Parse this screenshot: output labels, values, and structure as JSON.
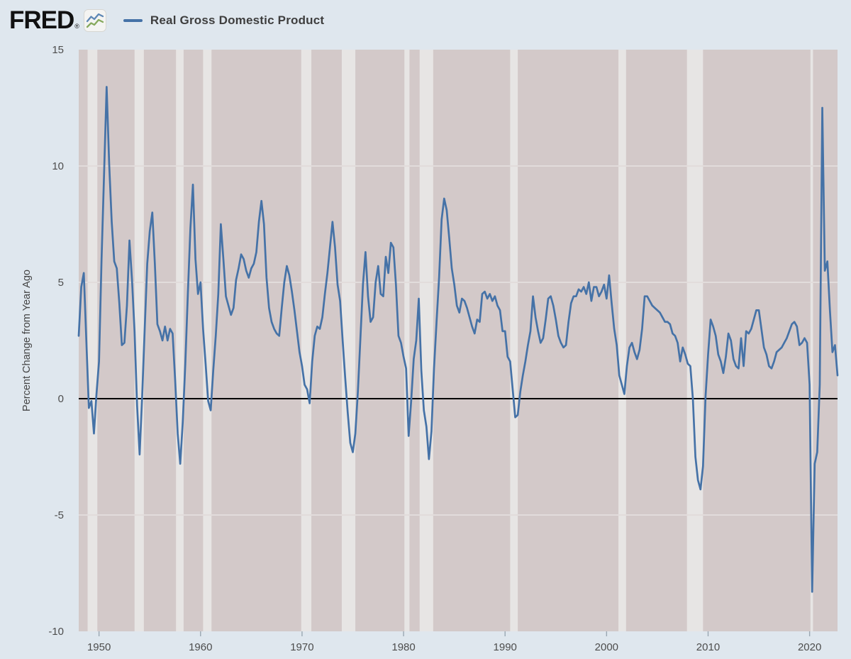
{
  "header": {
    "logo_text": "FRED",
    "logo_registered": "®",
    "series_label": "Real Gross Domestic Product"
  },
  "colors": {
    "page_bg": "#dfe7ee",
    "plot_bg": "#d3c9c9",
    "recession_band": "#e7e5e4",
    "gridline": "#e2dcdb",
    "line": "#4572a7",
    "zero_line": "#000000",
    "tick_text": "#4d4d4d",
    "axis_title": "#444444",
    "tick_mark": "#9aa7b2",
    "logo": "#111111",
    "legend_text": "#3e3e3e",
    "icon_blue": "#5e87b5",
    "icon_green": "#86a95d"
  },
  "chart_data": {
    "type": "line",
    "title": "Real Gross Domestic Product",
    "xlabel": "",
    "ylabel": "Percent Change from Year Ago",
    "legend_position": "top-left",
    "grid": "light horizontal gridlines every 5 units; shaded vertical recession bands",
    "frequency": "quarterly",
    "x_start_year": 1948,
    "x_domain": [
      1948.0,
      2022.75
    ],
    "y_domain": [
      -10,
      15
    ],
    "y_ticks": [
      15,
      10,
      5,
      0,
      -5,
      -10
    ],
    "x_ticks": [
      1950,
      1960,
      1970,
      1980,
      1990,
      2000,
      2010,
      2020
    ],
    "gridline_values": [
      10,
      5,
      -5
    ],
    "zero_line_value": 0,
    "recessions": [
      [
        1948.875,
        1949.833
      ],
      [
        1953.5,
        1954.417
      ],
      [
        1957.583,
        1958.333
      ],
      [
        1960.25,
        1961.083
      ],
      [
        1969.917,
        1970.917
      ],
      [
        1973.917,
        1975.25
      ],
      [
        1980.083,
        1980.583
      ],
      [
        1981.583,
        1982.917
      ],
      [
        1990.5,
        1991.25
      ],
      [
        2001.167,
        2001.917
      ],
      [
        2007.917,
        2009.5
      ],
      [
        2020.083,
        2020.333
      ]
    ],
    "values": [
      2.7,
      4.8,
      5.4,
      2.5,
      -0.4,
      -0.1,
      -1.5,
      0.2,
      1.6,
      6.0,
      9.7,
      13.4,
      10.1,
      7.6,
      5.9,
      5.6,
      4.1,
      2.3,
      2.4,
      4.0,
      6.8,
      5.1,
      2.9,
      -0.3,
      -2.4,
      0.1,
      3.0,
      5.8,
      7.2,
      8.0,
      5.8,
      3.2,
      2.9,
      2.5,
      3.1,
      2.5,
      3.0,
      2.8,
      0.8,
      -1.5,
      -2.8,
      -1.0,
      1.5,
      4.5,
      7.3,
      9.2,
      6.0,
      4.5,
      5.0,
      3.0,
      1.5,
      -0.1,
      -0.5,
      1.2,
      2.7,
      4.5,
      7.5,
      6.0,
      4.4,
      4.0,
      3.6,
      3.9,
      5.1,
      5.6,
      6.2,
      6.0,
      5.5,
      5.2,
      5.6,
      5.8,
      6.3,
      7.6,
      8.5,
      7.5,
      5.2,
      3.9,
      3.3,
      3.0,
      2.8,
      2.7,
      3.9,
      5.0,
      5.7,
      5.3,
      4.6,
      3.8,
      2.9,
      2.0,
      1.4,
      0.6,
      0.4,
      -0.2,
      1.6,
      2.7,
      3.1,
      3.0,
      3.5,
      4.5,
      5.4,
      6.5,
      7.6,
      6.5,
      4.9,
      4.2,
      2.5,
      0.9,
      -0.6,
      -1.9,
      -2.3,
      -1.5,
      0.3,
      2.6,
      4.9,
      6.3,
      4.4,
      3.3,
      3.5,
      5.0,
      5.7,
      4.5,
      4.4,
      6.1,
      5.4,
      6.7,
      6.5,
      4.9,
      2.7,
      2.4,
      1.8,
      1.3,
      -1.6,
      -0.1,
      1.7,
      2.5,
      4.3,
      1.2,
      -0.5,
      -1.2,
      -2.6,
      -1.4,
      1.3,
      3.3,
      5.2,
      7.7,
      8.6,
      8.1,
      6.9,
      5.6,
      4.9,
      4.0,
      3.7,
      4.3,
      4.2,
      3.9,
      3.5,
      3.1,
      2.8,
      3.4,
      3.3,
      4.5,
      4.6,
      4.3,
      4.5,
      4.2,
      4.4,
      4.0,
      3.8,
      2.9,
      2.9,
      1.8,
      1.6,
      0.4,
      -0.8,
      -0.7,
      0.3,
      1.0,
      1.6,
      2.3,
      2.9,
      4.4,
      3.5,
      2.9,
      2.4,
      2.6,
      3.4,
      4.3,
      4.4,
      4.0,
      3.4,
      2.7,
      2.4,
      2.2,
      2.3,
      3.3,
      4.1,
      4.4,
      4.4,
      4.7,
      4.6,
      4.8,
      4.5,
      5.0,
      4.2,
      4.8,
      4.8,
      4.4,
      4.6,
      4.9,
      4.3,
      5.3,
      4.1,
      3.0,
      2.3,
      1.0,
      0.6,
      0.2,
      1.4,
      2.2,
      2.4,
      2.0,
      1.7,
      2.1,
      3.0,
      4.4,
      4.4,
      4.2,
      4.0,
      3.9,
      3.8,
      3.7,
      3.5,
      3.3,
      3.3,
      3.2,
      2.8,
      2.7,
      2.4,
      1.6,
      2.2,
      1.9,
      1.5,
      1.4,
      0.0,
      -2.5,
      -3.5,
      -3.9,
      -2.9,
      0.1,
      1.9,
      3.4,
      3.1,
      2.7,
      1.9,
      1.6,
      1.1,
      1.8,
      2.8,
      2.5,
      1.7,
      1.4,
      1.3,
      2.6,
      1.4,
      2.9,
      2.8,
      3.0,
      3.4,
      3.8,
      3.8,
      3.0,
      2.2,
      1.9,
      1.4,
      1.3,
      1.6,
      2.0,
      2.1,
      2.2,
      2.4,
      2.6,
      2.9,
      3.2,
      3.3,
      3.1,
      2.3,
      2.4,
      2.6,
      2.4,
      0.6,
      -8.3,
      -2.8,
      -2.3,
      0.6,
      12.5,
      5.5,
      5.9,
      3.8,
      2.0,
      2.3,
      1.0
    ]
  }
}
